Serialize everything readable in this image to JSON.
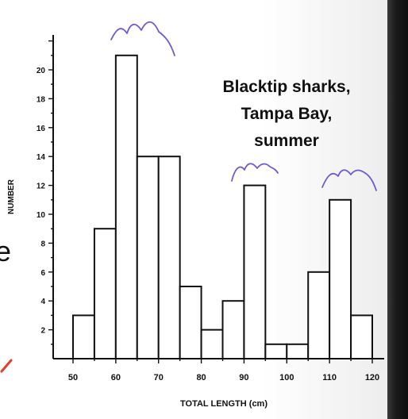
{
  "chart_data": {
    "type": "bar",
    "title_lines": [
      "Blacktip sharks,",
      "Tampa Bay,",
      "summer"
    ],
    "xlabel": "TOTAL LENGTH (cm)",
    "ylabel": "NUMBER",
    "x_bins": [
      [
        50,
        55
      ],
      [
        55,
        60
      ],
      [
        60,
        65
      ],
      [
        65,
        70
      ],
      [
        70,
        75
      ],
      [
        75,
        80
      ],
      [
        80,
        85
      ],
      [
        85,
        90
      ],
      [
        90,
        95
      ],
      [
        95,
        100
      ],
      [
        100,
        105
      ],
      [
        105,
        110
      ],
      [
        110,
        115
      ],
      [
        115,
        120
      ]
    ],
    "values": [
      3,
      9,
      21,
      14,
      14,
      5,
      2,
      4,
      12,
      1,
      1,
      6,
      11,
      3
    ],
    "xlim": [
      47,
      122
    ],
    "ylim": [
      0,
      23
    ],
    "xticks": [
      50,
      60,
      70,
      80,
      90,
      100,
      110,
      120
    ],
    "yticks": [
      2,
      4,
      6,
      8,
      10,
      12,
      14,
      16,
      18,
      20
    ],
    "annotations": [
      "purple hand-drawn arc over 60–70 cm peak",
      "purple hand-drawn arc over 90 cm peak",
      "purple hand-drawn arc over 110 cm peak"
    ]
  },
  "colors": {
    "bars": "#ffffff",
    "ink": "#111111",
    "annotation": "#6b5bd2",
    "red": "#e0402a"
  },
  "page": {
    "left_fragment": "e"
  }
}
